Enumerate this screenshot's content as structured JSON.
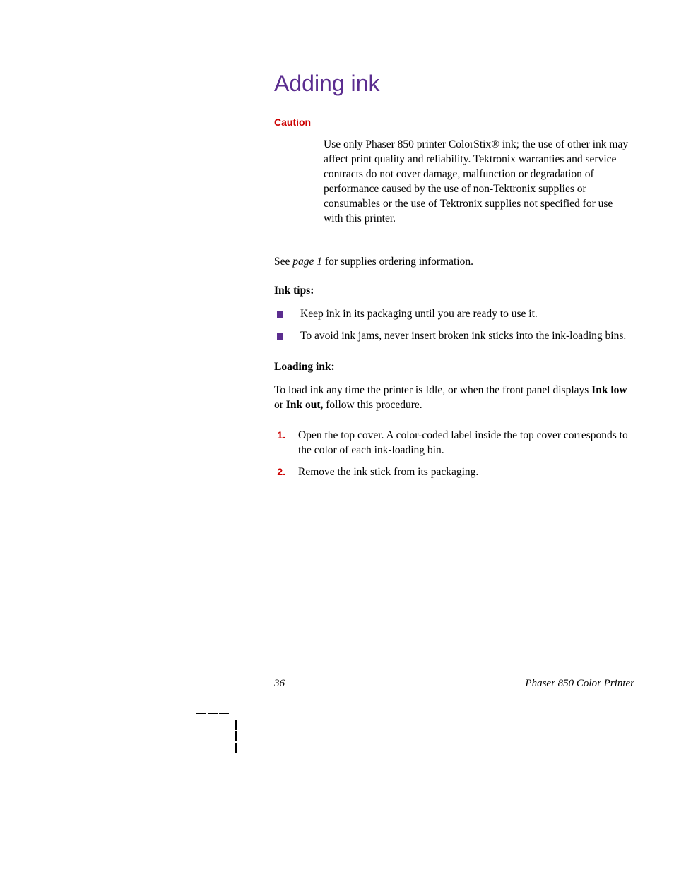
{
  "title": "Adding ink",
  "caution": {
    "label": "Caution",
    "body": "Use only Phaser 850 printer ColorStix® ink; the use of other ink may affect print quality and reliability.  Tektronix warranties and service contracts do not cover damage, malfunction or degradation of performance caused by the use of non-Tektronix supplies or consumables or the use of Tektronix supplies not specified for use with this printer."
  },
  "see_prefix": "See ",
  "see_ref": "page 1",
  "see_suffix": " for supplies ordering information.",
  "ink_tips_heading": "Ink tips:",
  "ink_tips": [
    "Keep ink in its packaging until you are ready to use it.",
    "To avoid ink jams, never insert broken ink sticks into the ink-loading bins."
  ],
  "loading_heading": "Loading ink:",
  "loading_intro_prefix": "To load ink any time the printer is Idle, or when the front panel displays ",
  "loading_intro_bold1": "Ink low",
  "loading_intro_mid": " or ",
  "loading_intro_bold2": "Ink out,",
  "loading_intro_suffix": " follow this procedure.",
  "steps": [
    {
      "n": "1.",
      "text": "Open the top cover.  A color-coded label inside the top cover corresponds to the color of each ink-loading bin."
    },
    {
      "n": "2.",
      "text": "Remove the ink stick from its packaging."
    }
  ],
  "footer": {
    "page": "36",
    "doc": "Phaser 850 Color Printer"
  },
  "colors": {
    "title": "#5b2d8f",
    "caution": "#cc0000",
    "bullet": "#5b2d8f",
    "step_num": "#cc0000",
    "text": "#000000",
    "background": "#ffffff"
  },
  "typography": {
    "title_fontsize": 32,
    "body_fontsize": 15.5,
    "caution_label_fontsize": 14,
    "step_num_fontsize": 14,
    "footer_fontsize": 15
  }
}
